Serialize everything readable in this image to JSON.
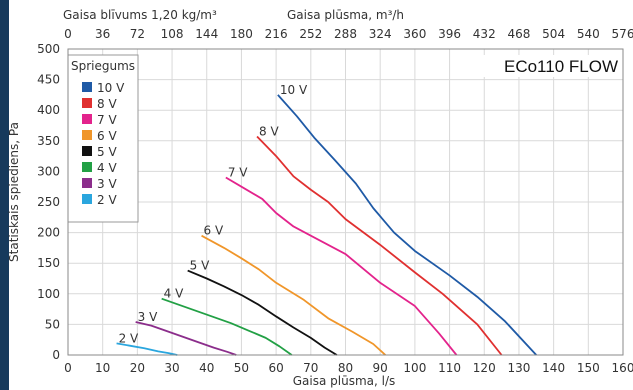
{
  "chart_data": {
    "type": "line",
    "model_label": "ECo110 FLOW",
    "legend_title": "Spriegums",
    "xlabel": "Gaisa plūsma, l/s",
    "ylabel": "Statiskais spiediens, Pa",
    "top_axis_label": "Gaisa plūsma, m³/h",
    "density_label": "Gaisa blīvums 1,20 kg/m³",
    "xlim": [
      0,
      160
    ],
    "ylim": [
      0,
      500
    ],
    "x_ticks": [
      "0",
      "10",
      "20",
      "30",
      "40",
      "50",
      "60",
      "70",
      "80",
      "90",
      "100",
      "110",
      "120",
      "130",
      "140",
      "150",
      "160"
    ],
    "y_ticks": [
      "0",
      "50",
      "100",
      "150",
      "200",
      "250",
      "300",
      "350",
      "400",
      "450",
      "500"
    ],
    "top_ticks": [
      "0",
      "36",
      "72",
      "108",
      "144",
      "180",
      "216",
      "252",
      "288",
      "324",
      "360",
      "396",
      "432",
      "468",
      "504",
      "540",
      "576"
    ],
    "grid": true,
    "legend_position": "top-left",
    "series": [
      {
        "name": "10 V",
        "color": "#1f5aa6",
        "x": [
          60.5,
          66,
          71,
          77,
          83,
          88,
          94,
          100,
          110,
          118,
          126,
          135
        ],
        "y": [
          425,
          390,
          355,
          318,
          280,
          240,
          200,
          170,
          130,
          95,
          55,
          0
        ]
      },
      {
        "name": "8 V",
        "color": "#e03030",
        "x": [
          54.5,
          60,
          65,
          70,
          75,
          80,
          90,
          100,
          108,
          118,
          125
        ],
        "y": [
          357,
          325,
          292,
          270,
          250,
          222,
          180,
          135,
          100,
          50,
          0
        ]
      },
      {
        "name": "7 V",
        "color": "#e3238c",
        "x": [
          45.5,
          50,
          56,
          60,
          65,
          70,
          80,
          90,
          100,
          107,
          112
        ],
        "y": [
          290,
          275,
          255,
          232,
          210,
          195,
          165,
          118,
          80,
          35,
          0
        ]
      },
      {
        "name": "6 V",
        "color": "#f0962a",
        "x": [
          38.5,
          45,
          50,
          55,
          60,
          68,
          75,
          82,
          88,
          91.5
        ],
        "y": [
          195,
          175,
          158,
          140,
          118,
          90,
          60,
          38,
          18,
          0
        ]
      },
      {
        "name": "5 V",
        "color": "#111111",
        "x": [
          34.5,
          40,
          45,
          50,
          55,
          60,
          65,
          70,
          74,
          77.5
        ],
        "y": [
          138,
          125,
          112,
          98,
          82,
          63,
          45,
          28,
          12,
          0
        ]
      },
      {
        "name": "4 V",
        "color": "#22a045",
        "x": [
          27,
          32,
          37,
          42,
          47,
          52,
          57,
          61,
          64.5
        ],
        "y": [
          92,
          82,
          72,
          62,
          52,
          40,
          28,
          14,
          0
        ]
      },
      {
        "name": "3 V",
        "color": "#8b2d8b",
        "x": [
          19.5,
          24,
          28,
          33,
          38,
          42,
          46,
          48.5
        ],
        "y": [
          54,
          48,
          40,
          30,
          20,
          12,
          5,
          0
        ]
      },
      {
        "name": "2 V",
        "color": "#2aa6de",
        "x": [
          14,
          18,
          22,
          26,
          29,
          31.5
        ],
        "y": [
          19,
          15,
          11,
          6,
          3,
          0
        ]
      }
    ]
  }
}
